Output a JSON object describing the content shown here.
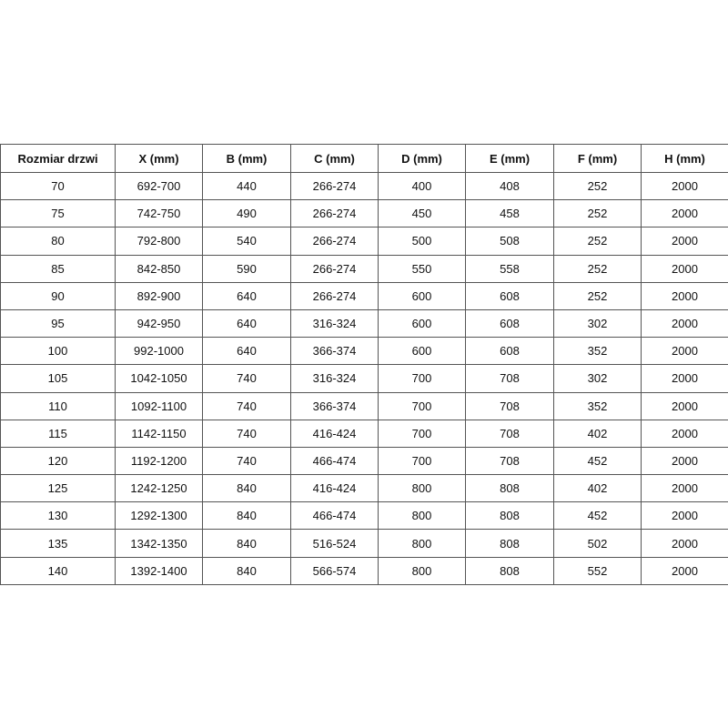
{
  "table": {
    "header": [
      "Rozmiar drzwi",
      "X (mm)",
      "B (mm)",
      "C (mm)",
      "D (mm)",
      "E (mm)",
      "F (mm)",
      "H (mm)"
    ],
    "rows": [
      [
        "70",
        "692-700",
        "440",
        "266-274",
        "400",
        "408",
        "252",
        "2000"
      ],
      [
        "75",
        "742-750",
        "490",
        "266-274",
        "450",
        "458",
        "252",
        "2000"
      ],
      [
        "80",
        "792-800",
        "540",
        "266-274",
        "500",
        "508",
        "252",
        "2000"
      ],
      [
        "85",
        "842-850",
        "590",
        "266-274",
        "550",
        "558",
        "252",
        "2000"
      ],
      [
        "90",
        "892-900",
        "640",
        "266-274",
        "600",
        "608",
        "252",
        "2000"
      ],
      [
        "95",
        "942-950",
        "640",
        "316-324",
        "600",
        "608",
        "302",
        "2000"
      ],
      [
        "100",
        "992-1000",
        "640",
        "366-374",
        "600",
        "608",
        "352",
        "2000"
      ],
      [
        "105",
        "1042-1050",
        "740",
        "316-324",
        "700",
        "708",
        "302",
        "2000"
      ],
      [
        "110",
        "1092-1100",
        "740",
        "366-374",
        "700",
        "708",
        "352",
        "2000"
      ],
      [
        "115",
        "1142-1150",
        "740",
        "416-424",
        "700",
        "708",
        "402",
        "2000"
      ],
      [
        "120",
        "1192-1200",
        "740",
        "466-474",
        "700",
        "708",
        "452",
        "2000"
      ],
      [
        "125",
        "1242-1250",
        "840",
        "416-424",
        "800",
        "808",
        "402",
        "2000"
      ],
      [
        "130",
        "1292-1300",
        "840",
        "466-474",
        "800",
        "808",
        "452",
        "2000"
      ],
      [
        "135",
        "1342-1350",
        "840",
        "516-524",
        "800",
        "808",
        "502",
        "2000"
      ],
      [
        "140",
        "1392-1400",
        "840",
        "566-574",
        "800",
        "808",
        "552",
        "2000"
      ]
    ]
  }
}
